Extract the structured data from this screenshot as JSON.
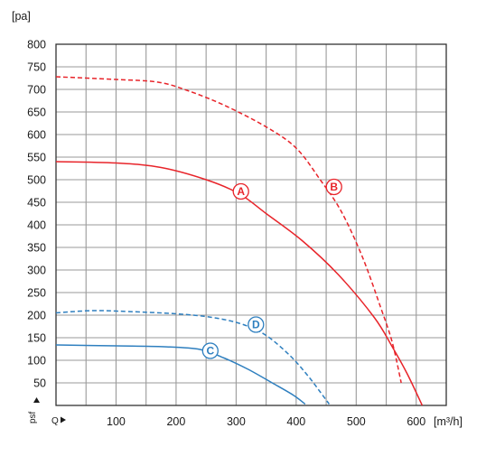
{
  "chart_data": {
    "type": "line",
    "xlabel": "[m³/h]",
    "ylabel": "[pa]",
    "x_axis_symbol": "Q",
    "y_axis_symbol": "psf",
    "xlim": [
      0,
      650
    ],
    "ylim": [
      0,
      800
    ],
    "x_ticks": [
      100,
      200,
      300,
      400,
      500,
      600
    ],
    "y_ticks": [
      50,
      100,
      150,
      200,
      250,
      300,
      350,
      400,
      450,
      500,
      550,
      600,
      650,
      700,
      750,
      800
    ],
    "grid": true,
    "colors": {
      "red": "#e8242a",
      "blue": "#2e7fbf",
      "grid": "#9a9a9a",
      "frame": "#333333"
    },
    "series": [
      {
        "name": "A",
        "color": "#e8242a",
        "dash": false,
        "label_at": [
          308,
          474
        ],
        "points": [
          [
            0,
            540
          ],
          [
            100,
            537
          ],
          [
            175,
            527
          ],
          [
            250,
            500
          ],
          [
            305,
            469
          ],
          [
            350,
            425
          ],
          [
            410,
            365
          ],
          [
            470,
            290
          ],
          [
            530,
            195
          ],
          [
            560,
            130
          ],
          [
            585,
            70
          ],
          [
            610,
            0
          ]
        ]
      },
      {
        "name": "B",
        "color": "#e8242a",
        "dash": true,
        "label_at": [
          463,
          484
        ],
        "points": [
          [
            0,
            728
          ],
          [
            100,
            722
          ],
          [
            170,
            716
          ],
          [
            220,
            697
          ],
          [
            280,
            665
          ],
          [
            350,
            617
          ],
          [
            400,
            570
          ],
          [
            440,
            500
          ],
          [
            475,
            430
          ],
          [
            510,
            330
          ],
          [
            540,
            220
          ],
          [
            560,
            140
          ],
          [
            575,
            50
          ]
        ]
      },
      {
        "name": "C",
        "color": "#2e7fbf",
        "dash": false,
        "label_at": [
          257,
          121
        ],
        "points": [
          [
            0,
            134
          ],
          [
            100,
            132
          ],
          [
            180,
            130
          ],
          [
            240,
            124
          ],
          [
            280,
            105
          ],
          [
            320,
            80
          ],
          [
            360,
            50
          ],
          [
            395,
            23
          ],
          [
            415,
            3
          ]
        ]
      },
      {
        "name": "D",
        "color": "#2e7fbf",
        "dash": true,
        "label_at": [
          333,
          179
        ],
        "points": [
          [
            0,
            205
          ],
          [
            60,
            210
          ],
          [
            120,
            208
          ],
          [
            200,
            203
          ],
          [
            260,
            195
          ],
          [
            310,
            180
          ],
          [
            350,
            155
          ],
          [
            390,
            110
          ],
          [
            420,
            65
          ],
          [
            440,
            30
          ],
          [
            455,
            3
          ]
        ]
      }
    ]
  }
}
